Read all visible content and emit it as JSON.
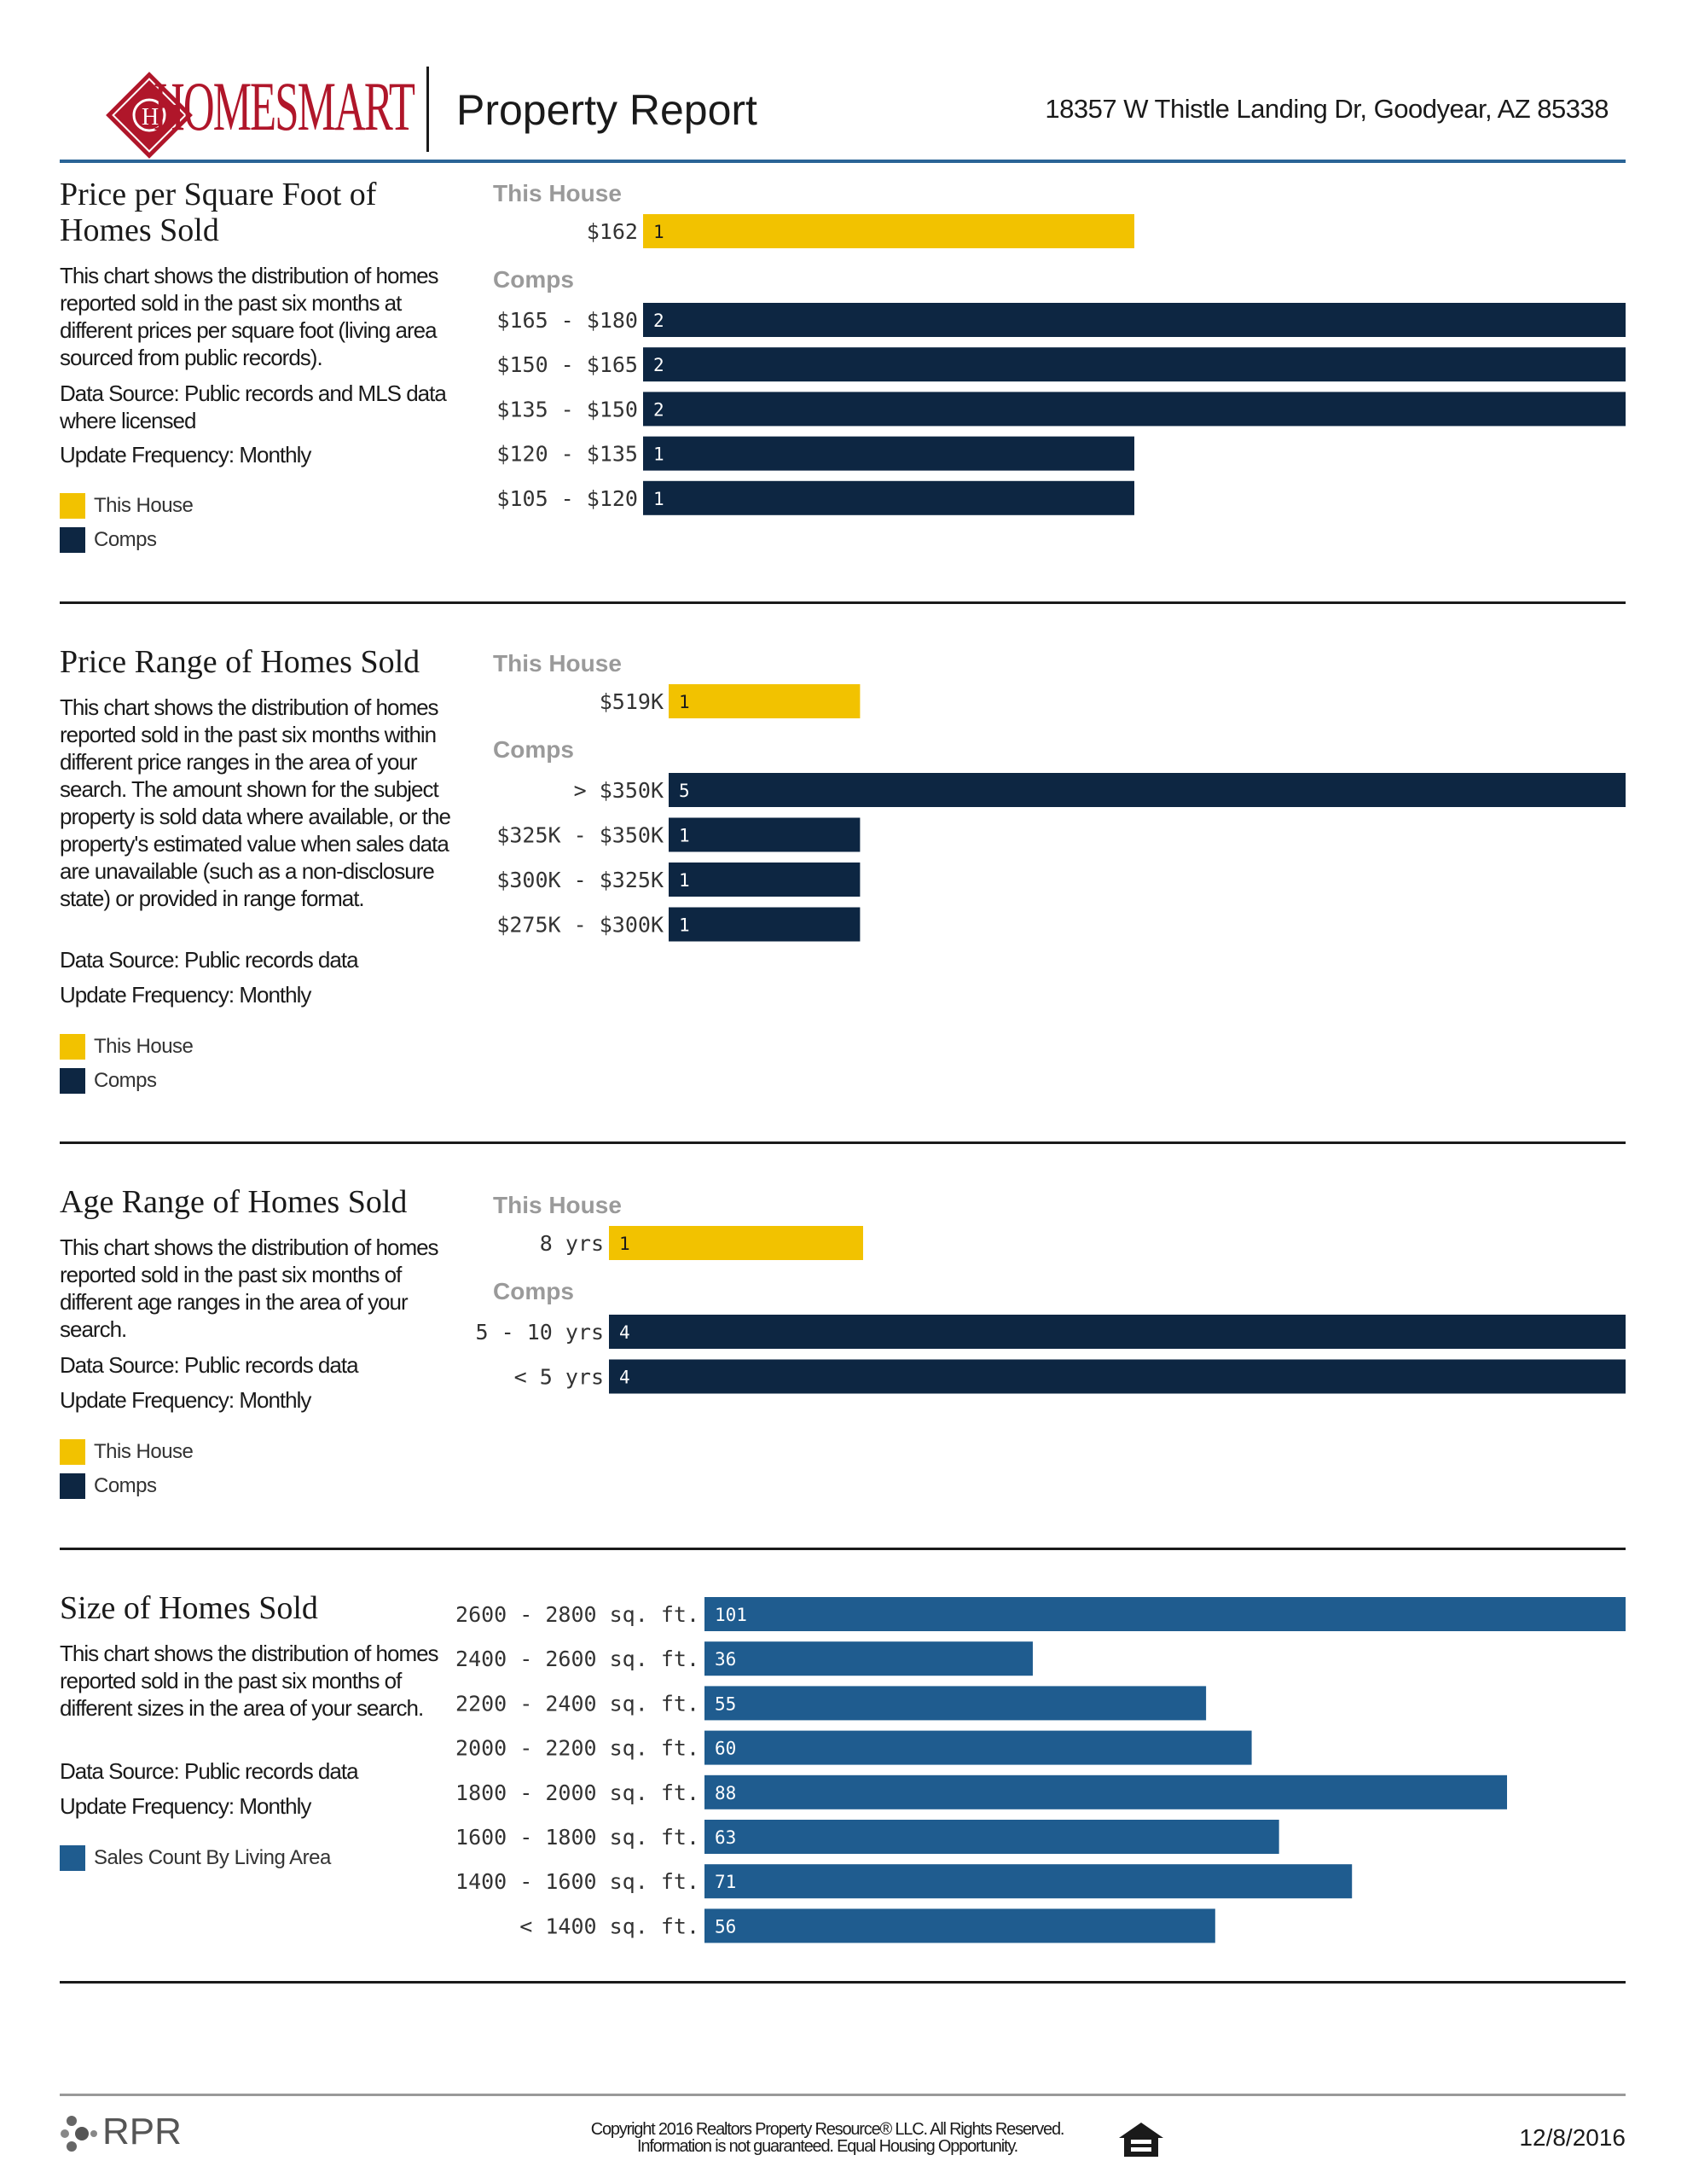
{
  "header": {
    "logo_text": "HOMESMART",
    "report_title": "Property Report",
    "address": "18357 W Thistle Landing Dr, Goodyear, AZ 85338"
  },
  "colors": {
    "this_house": "#f2c200",
    "comps": "#0d2642",
    "sales": "#1f5c8f",
    "brand_red": "#b0162a",
    "header_rule": "#2a6496"
  },
  "sections": [
    {
      "title": "Price per Square Foot of Homes Sold",
      "description": "This chart shows the distribution of homes reported sold in the past six months at different prices per square foot (living area sourced from public records).",
      "source": "Data Source: Public records and MLS data where licensed",
      "frequency": "Update Frequency: Monthly",
      "legend": [
        "This House",
        "Comps"
      ]
    },
    {
      "title": "Price Range of Homes Sold",
      "description": "This chart shows the distribution of homes reported sold in the past six months within different price ranges in the area of your search. The amount shown for the subject property is sold data where available, or the property's estimated value when sales data are unavailable (such as a non-disclosure state) or provided in range format.",
      "source": "Data Source: Public records data",
      "frequency": "Update Frequency: Monthly",
      "legend": [
        "This House",
        "Comps"
      ]
    },
    {
      "title": "Age Range of Homes Sold",
      "description": "This chart shows the distribution of homes reported sold in the past six months of different age ranges in the area of your search.",
      "source": "Data Source: Public records data",
      "frequency": "Update Frequency: Monthly",
      "legend": [
        "This House",
        "Comps"
      ]
    },
    {
      "title": "Size of Homes Sold",
      "description": "This chart shows the distribution of homes reported sold in the past six months of different sizes in the area of your search.",
      "source": "Data Source: Public records data",
      "frequency": "Update Frequency: Monthly",
      "legend": [
        "Sales Count By Living Area"
      ]
    }
  ],
  "chart_data": [
    {
      "type": "bar",
      "orientation": "horizontal",
      "group_labels": [
        "This House",
        "Comps"
      ],
      "this_house": {
        "category": "$162",
        "value": 1
      },
      "categories": [
        "$165 - $180",
        "$150 - $165",
        "$135 - $150",
        "$120 - $135",
        "$105 - $120"
      ],
      "values": [
        2,
        2,
        2,
        1,
        1
      ],
      "xlim": [
        0,
        2
      ]
    },
    {
      "type": "bar",
      "orientation": "horizontal",
      "group_labels": [
        "This House",
        "Comps"
      ],
      "this_house": {
        "category": "$519K",
        "value": 1
      },
      "categories": [
        "> $350K",
        "$325K - $350K",
        "$300K - $325K",
        "$275K - $300K"
      ],
      "values": [
        5,
        1,
        1,
        1
      ],
      "xlim": [
        0,
        5
      ]
    },
    {
      "type": "bar",
      "orientation": "horizontal",
      "group_labels": [
        "This House",
        "Comps"
      ],
      "this_house": {
        "category": "8 yrs",
        "value": 1
      },
      "categories": [
        "5 - 10 yrs",
        "< 5 yrs"
      ],
      "values": [
        4,
        4
      ],
      "xlim": [
        0,
        4
      ]
    },
    {
      "type": "bar",
      "orientation": "horizontal",
      "categories": [
        "2600 - 2800 sq. ft.",
        "2400 - 2600 sq. ft.",
        "2200 - 2400 sq. ft.",
        "2000 - 2200 sq. ft.",
        "1800 - 2000 sq. ft.",
        "1600 - 1800 sq. ft.",
        "1400 - 1600 sq. ft.",
        "< 1400 sq. ft."
      ],
      "values": [
        101,
        36,
        55,
        60,
        88,
        63,
        71,
        56
      ],
      "xlim": [
        0,
        101
      ]
    }
  ],
  "footer": {
    "rpr_text": "RPR",
    "copyright_line1": "Copyright 2016 Realtors Property Resource® LLC. All Rights Reserved.",
    "copyright_line2": "Information is not guaranteed. Equal Housing Opportunity.",
    "date": "12/8/2016"
  }
}
